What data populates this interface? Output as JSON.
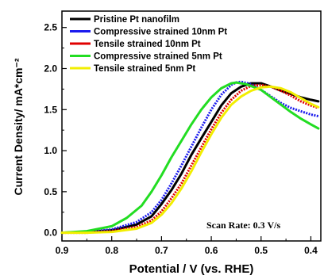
{
  "chart_data": {
    "type": "line",
    "title": "",
    "xlabel": "Potential / V (vs. RHE)",
    "ylabel": "Current Density/ mA*cm⁻²",
    "xlim": [
      0.9,
      0.38
    ],
    "ylim": [
      -0.1,
      2.7
    ],
    "x_ticks": [
      "0.9",
      "0.8",
      "0.7",
      "0.6",
      "0.5",
      "0.4"
    ],
    "y_ticks": [
      "0.0",
      "0.5",
      "1.0",
      "1.5",
      "2.0",
      "2.5"
    ],
    "x_reversed": true,
    "grid": false,
    "legend_position": "top-left",
    "annotation": "Scan Rate: 0.3 V/s",
    "series": [
      {
        "name": "Pristine Pt nanofilm",
        "color": "#000000",
        "style": "solid",
        "points": [
          [
            0.9,
            0.0
          ],
          [
            0.85,
            0.01
          ],
          [
            0.8,
            0.03
          ],
          [
            0.75,
            0.1
          ],
          [
            0.72,
            0.2
          ],
          [
            0.7,
            0.35
          ],
          [
            0.68,
            0.52
          ],
          [
            0.66,
            0.72
          ],
          [
            0.64,
            0.95
          ],
          [
            0.62,
            1.15
          ],
          [
            0.6,
            1.35
          ],
          [
            0.58,
            1.55
          ],
          [
            0.56,
            1.7
          ],
          [
            0.54,
            1.78
          ],
          [
            0.52,
            1.82
          ],
          [
            0.5,
            1.82
          ],
          [
            0.48,
            1.78
          ],
          [
            0.46,
            1.73
          ],
          [
            0.44,
            1.69
          ],
          [
            0.42,
            1.65
          ],
          [
            0.4,
            1.62
          ],
          [
            0.385,
            1.6
          ]
        ]
      },
      {
        "name": "Compressive strained 10nm Pt",
        "color": "#1a1aee",
        "style": "dotted",
        "points": [
          [
            0.9,
            0.0
          ],
          [
            0.85,
            0.01
          ],
          [
            0.8,
            0.04
          ],
          [
            0.75,
            0.13
          ],
          [
            0.72,
            0.25
          ],
          [
            0.7,
            0.4
          ],
          [
            0.68,
            0.6
          ],
          [
            0.66,
            0.82
          ],
          [
            0.64,
            1.05
          ],
          [
            0.62,
            1.28
          ],
          [
            0.6,
            1.5
          ],
          [
            0.58,
            1.68
          ],
          [
            0.56,
            1.8
          ],
          [
            0.55,
            1.83
          ],
          [
            0.54,
            1.84
          ],
          [
            0.52,
            1.81
          ],
          [
            0.5,
            1.74
          ],
          [
            0.48,
            1.66
          ],
          [
            0.46,
            1.58
          ],
          [
            0.44,
            1.52
          ],
          [
            0.42,
            1.48
          ],
          [
            0.4,
            1.44
          ],
          [
            0.385,
            1.42
          ]
        ]
      },
      {
        "name": "Tensile strained 10nm Pt",
        "color": "#e00000",
        "style": "dotted",
        "points": [
          [
            0.9,
            0.0
          ],
          [
            0.85,
            0.0
          ],
          [
            0.8,
            0.02
          ],
          [
            0.75,
            0.07
          ],
          [
            0.72,
            0.15
          ],
          [
            0.7,
            0.26
          ],
          [
            0.68,
            0.42
          ],
          [
            0.66,
            0.6
          ],
          [
            0.64,
            0.82
          ],
          [
            0.62,
            1.04
          ],
          [
            0.6,
            1.26
          ],
          [
            0.58,
            1.46
          ],
          [
            0.56,
            1.62
          ],
          [
            0.54,
            1.73
          ],
          [
            0.52,
            1.79
          ],
          [
            0.5,
            1.8
          ],
          [
            0.48,
            1.78
          ],
          [
            0.46,
            1.73
          ],
          [
            0.44,
            1.67
          ],
          [
            0.42,
            1.6
          ],
          [
            0.4,
            1.55
          ],
          [
            0.385,
            1.52
          ]
        ]
      },
      {
        "name": "Compressive strained 5nm Pt",
        "color": "#22dd22",
        "style": "solid",
        "points": [
          [
            0.9,
            0.0
          ],
          [
            0.85,
            0.02
          ],
          [
            0.8,
            0.08
          ],
          [
            0.77,
            0.18
          ],
          [
            0.74,
            0.33
          ],
          [
            0.72,
            0.5
          ],
          [
            0.7,
            0.7
          ],
          [
            0.68,
            0.92
          ],
          [
            0.66,
            1.12
          ],
          [
            0.64,
            1.32
          ],
          [
            0.62,
            1.5
          ],
          [
            0.6,
            1.65
          ],
          [
            0.58,
            1.76
          ],
          [
            0.56,
            1.82
          ],
          [
            0.55,
            1.83
          ],
          [
            0.53,
            1.81
          ],
          [
            0.5,
            1.74
          ],
          [
            0.48,
            1.65
          ],
          [
            0.46,
            1.56
          ],
          [
            0.44,
            1.47
          ],
          [
            0.42,
            1.39
          ],
          [
            0.4,
            1.32
          ],
          [
            0.385,
            1.27
          ]
        ]
      },
      {
        "name": "Tensile strained 5nm Pt",
        "color": "#f2ee00",
        "style": "solid",
        "points": [
          [
            0.9,
            0.0
          ],
          [
            0.85,
            0.0
          ],
          [
            0.8,
            0.01
          ],
          [
            0.75,
            0.05
          ],
          [
            0.72,
            0.12
          ],
          [
            0.7,
            0.22
          ],
          [
            0.68,
            0.36
          ],
          [
            0.66,
            0.54
          ],
          [
            0.64,
            0.75
          ],
          [
            0.62,
            0.98
          ],
          [
            0.6,
            1.2
          ],
          [
            0.58,
            1.4
          ],
          [
            0.56,
            1.56
          ],
          [
            0.54,
            1.66
          ],
          [
            0.52,
            1.73
          ],
          [
            0.5,
            1.77
          ],
          [
            0.48,
            1.78
          ],
          [
            0.46,
            1.76
          ],
          [
            0.44,
            1.71
          ],
          [
            0.42,
            1.64
          ],
          [
            0.4,
            1.57
          ],
          [
            0.385,
            1.53
          ]
        ]
      }
    ]
  }
}
